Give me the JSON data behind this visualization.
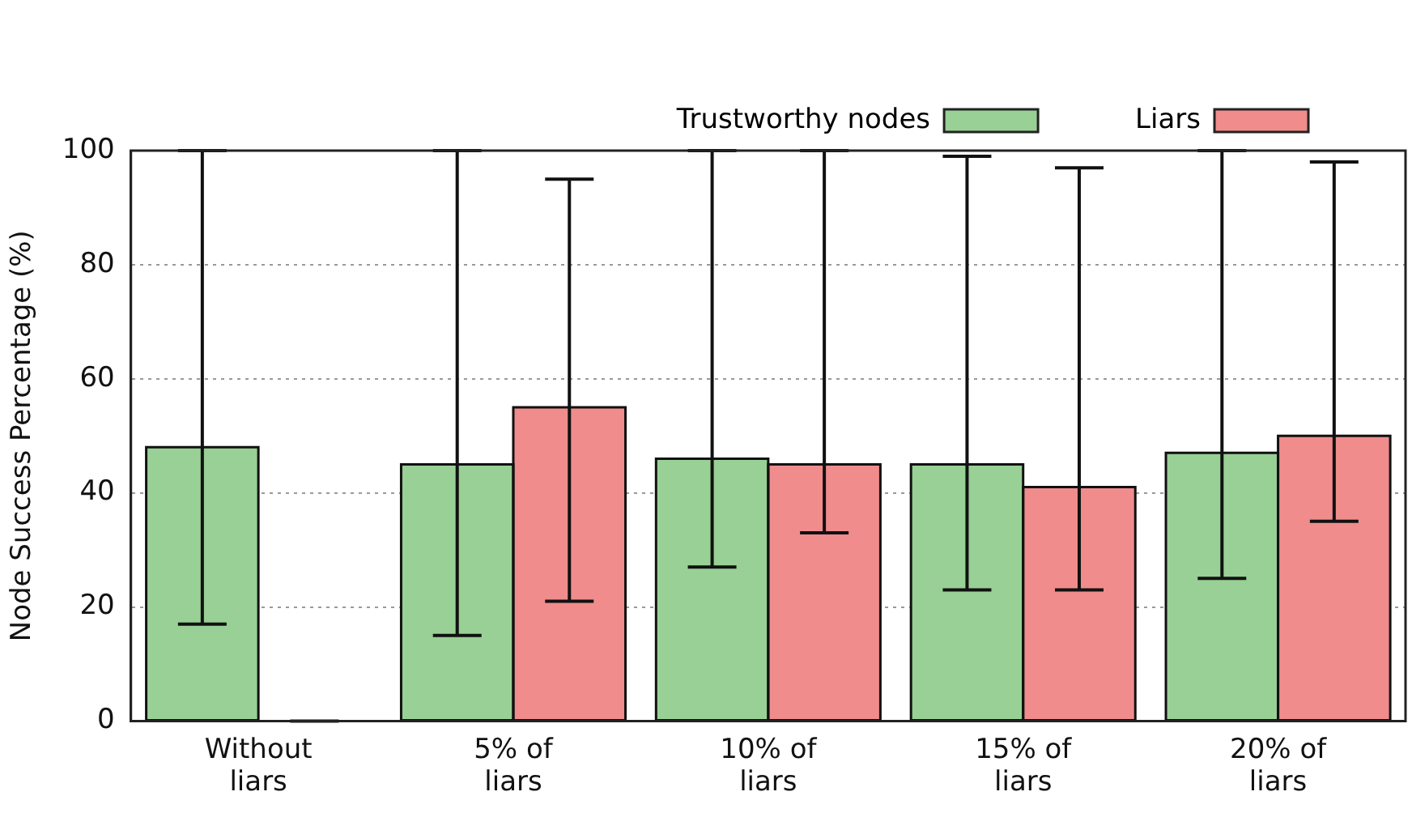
{
  "chart_data": {
    "type": "bar",
    "ylabel": "Node Success Percentage (%)",
    "categories": [
      "Without liars",
      "5% of liars",
      "10% of liars",
      "15% of liars",
      "20% of liars"
    ],
    "series": [
      {
        "name": "Trustworthy nodes",
        "color": "#98d095",
        "values": [
          48,
          45,
          46,
          45,
          47
        ],
        "errors": [
          [
            17,
            100
          ],
          [
            15,
            100
          ],
          [
            27,
            100
          ],
          [
            23,
            99
          ],
          [
            25,
            100
          ]
        ]
      },
      {
        "name": "Liars",
        "color": "#f08c8c",
        "values": [
          0,
          55,
          45,
          41,
          50
        ],
        "errors": [
          [
            0,
            0
          ],
          [
            21,
            95
          ],
          [
            33,
            100
          ],
          [
            23,
            97
          ],
          [
            35,
            98
          ]
        ]
      }
    ],
    "ylim": [
      0,
      100
    ],
    "yticks": [
      0,
      20,
      40,
      60,
      80,
      100
    ],
    "grid": "y",
    "legend": "top right"
  }
}
